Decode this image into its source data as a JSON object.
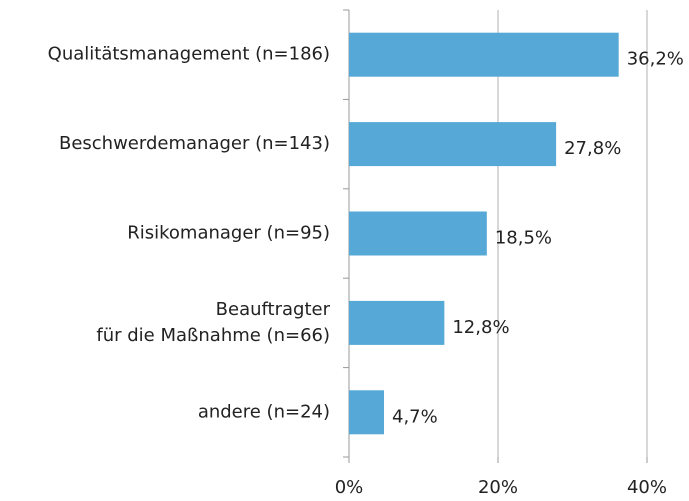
{
  "chart_data": {
    "type": "bar",
    "orientation": "horizontal",
    "categories": [
      [
        "Qualitätsmanagement (n=186)"
      ],
      [
        "Beschwerdemanager (n=143)"
      ],
      [
        "Risikomanager (n=95)"
      ],
      [
        "Beauftragter",
        "für die Maßnahme (n=66)"
      ],
      [
        "andere (n=24)"
      ]
    ],
    "values": [
      36.2,
      27.8,
      18.5,
      12.8,
      4.7
    ],
    "value_labels": [
      "36,2%",
      "27,8%",
      "18,5%",
      "12,8%",
      "4,7%"
    ],
    "color": "#56a9d6",
    "xlim": [
      0,
      40
    ],
    "xticks": [
      {
        "value": 0,
        "label": "0%"
      },
      {
        "value": 20,
        "label": "20%"
      },
      {
        "value": 40,
        "label": "40%"
      }
    ],
    "grid": true
  }
}
